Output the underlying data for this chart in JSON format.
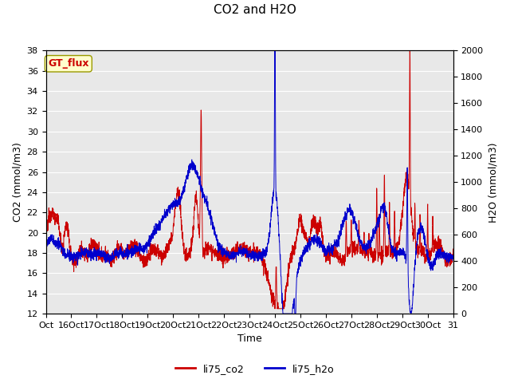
{
  "title": "CO2 and H2O",
  "xlabel": "Time",
  "ylabel_left": "CO2 (mmol/m3)",
  "ylabel_right": "H2O (mmol/m3)",
  "ylim_left": [
    12,
    38
  ],
  "ylim_right": [
    0,
    2000
  ],
  "yticks_left": [
    12,
    14,
    16,
    18,
    20,
    22,
    24,
    26,
    28,
    30,
    32,
    34,
    36,
    38
  ],
  "yticks_right": [
    0,
    200,
    400,
    600,
    800,
    1000,
    1200,
    1400,
    1600,
    1800,
    2000
  ],
  "xtick_labels": [
    "Oct",
    "16Oct",
    "17Oct",
    "18Oct",
    "19Oct",
    "20Oct",
    "21Oct",
    "22Oct",
    "23Oct",
    "24Oct",
    "25Oct",
    "26Oct",
    "27Oct",
    "28Oct",
    "29Oct",
    "30Oct",
    "31"
  ],
  "color_co2": "#cc0000",
  "color_h2o": "#0000cc",
  "label_co2": "li75_co2",
  "label_h2o": "li75_h2o",
  "annotation_text": "GT_flux",
  "annotation_bbox_fc": "#ffffcc",
  "annotation_bbox_ec": "#999900",
  "bg_color": "#e8e8e8",
  "grid_color": "#ffffff",
  "title_fontsize": 11,
  "axis_fontsize": 9,
  "tick_fontsize": 8,
  "legend_fontsize": 9
}
